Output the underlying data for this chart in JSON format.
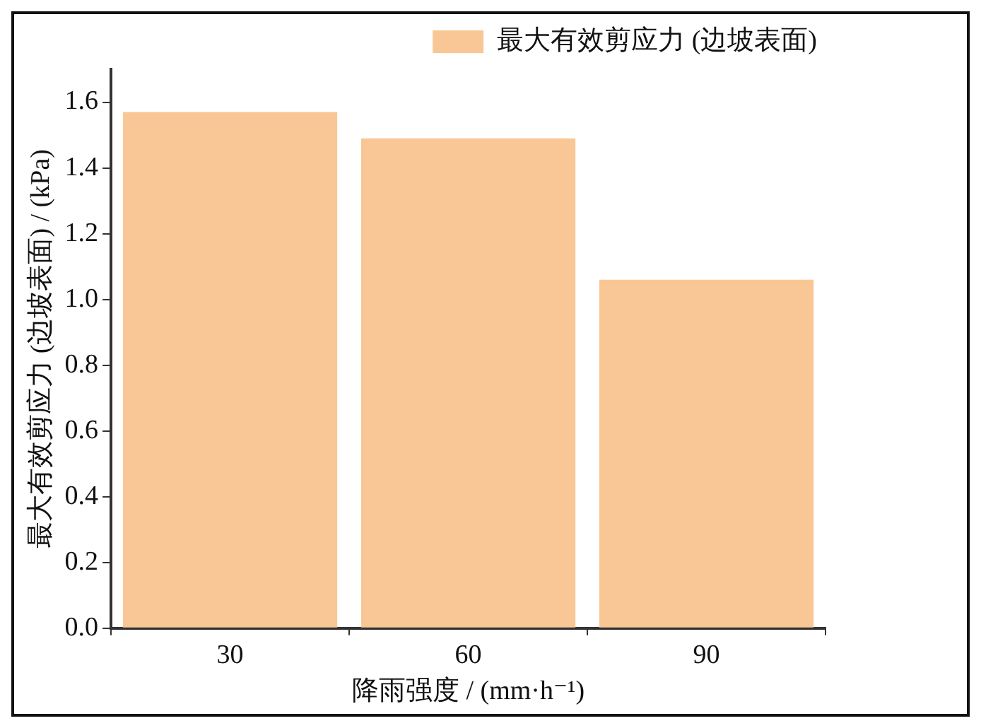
{
  "chart_data": {
    "type": "bar",
    "xlabel": "降雨强度 / (mm·h⁻¹)",
    "ylabel": "最大有效剪应力 (边坡表面) / (kPa)",
    "categories": [
      "30",
      "60",
      "90"
    ],
    "series": [
      {
        "name": "最大有效剪应力 (边坡表面)",
        "color": "#f9c795",
        "values": [
          1.57,
          1.49,
          1.06
        ]
      }
    ],
    "ylim": [
      0,
      1.7
    ],
    "yticks": [
      {
        "value": 0,
        "label": "0.0"
      },
      {
        "value": 0.2,
        "label": "0.2"
      },
      {
        "value": 0.4,
        "label": "0.4"
      },
      {
        "value": 0.6,
        "label": "0.6"
      },
      {
        "value": 0.8,
        "label": "0.8"
      },
      {
        "value": 1,
        "label": "1.0"
      },
      {
        "value": 1.2,
        "label": "1.2"
      },
      {
        "value": 1.4,
        "label": "1.4"
      },
      {
        "value": 1.6,
        "label": "1.6"
      }
    ],
    "grid": false,
    "legend": "top right"
  }
}
